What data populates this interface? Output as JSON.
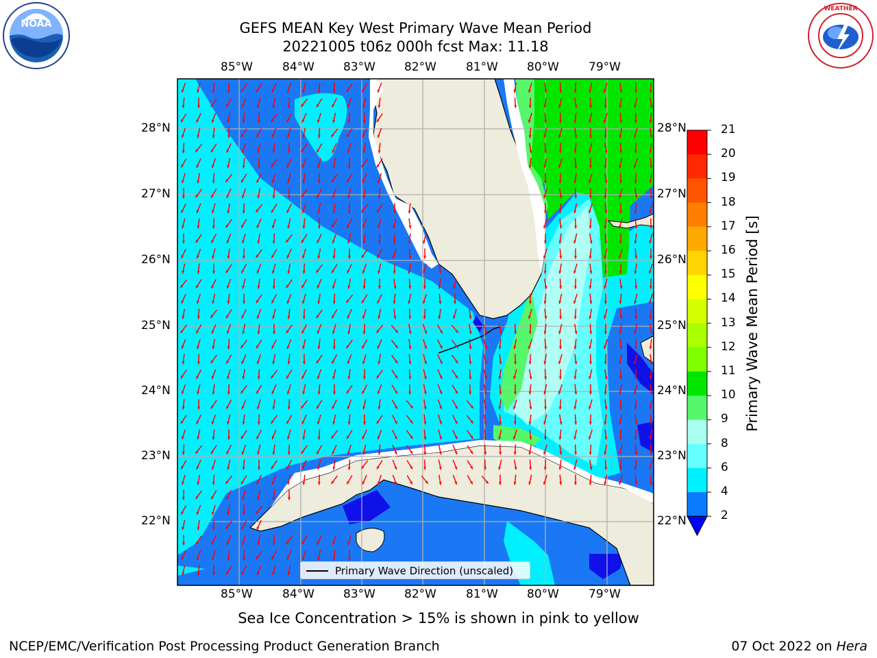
{
  "title": {
    "line1": "GEFS MEAN Key West Primary Wave Mean Period",
    "line2": "20221005 t06z 000h fcst   Max: 11.18"
  },
  "axes": {
    "lon_labels": [
      "85°W",
      "84°W",
      "83°W",
      "82°W",
      "81°W",
      "80°W",
      "79°W"
    ],
    "lat_labels": [
      "28°N",
      "27°N",
      "26°N",
      "25°N",
      "24°N",
      "23°N",
      "22°N"
    ]
  },
  "legend": {
    "label": "Primary Wave Direction (unscaled)"
  },
  "colorbar": {
    "label": "Primary Wave Mean Period [s]",
    "ticks": [
      "21",
      "20",
      "19",
      "18",
      "17",
      "16",
      "15",
      "14",
      "13",
      "12",
      "11",
      "10",
      "9",
      "8",
      "6",
      "4",
      "2"
    ],
    "colors": [
      "#ff0000",
      "#ff2a00",
      "#ff5500",
      "#ff7f00",
      "#ffaa00",
      "#ffd400",
      "#ffff00",
      "#d4ff00",
      "#aaff00",
      "#7fff00",
      "#00e600",
      "#55f76b",
      "#a8fff0",
      "#66ffff",
      "#00f0ff",
      "#0a7bff"
    ],
    "extend_color": "#0000ff"
  },
  "notes": {
    "sea_ice": "Sea Ice Concentration > 15% is shown in pink to yellow"
  },
  "footer": {
    "left": "NCEP/EMC/Verification Post Processing Product Generation Branch",
    "right_prefix": "07 Oct 2022 on ",
    "right_italic": "Hera"
  },
  "logos": {
    "noaa": "NOAA",
    "nws": "NATIONAL WEATHER SERVICE"
  },
  "map_colors": {
    "land": "#eeecdc",
    "cyan": "#00f0ff",
    "dark_blue": "#1a78f5",
    "deep_blue": "#1010e8",
    "light_cyan": "#66ffff",
    "pale_cyan": "#b0fff5",
    "green": "#00e600",
    "light_green": "#55f76b",
    "arrow": "#ff0000",
    "grid": "#b0b0b0"
  }
}
